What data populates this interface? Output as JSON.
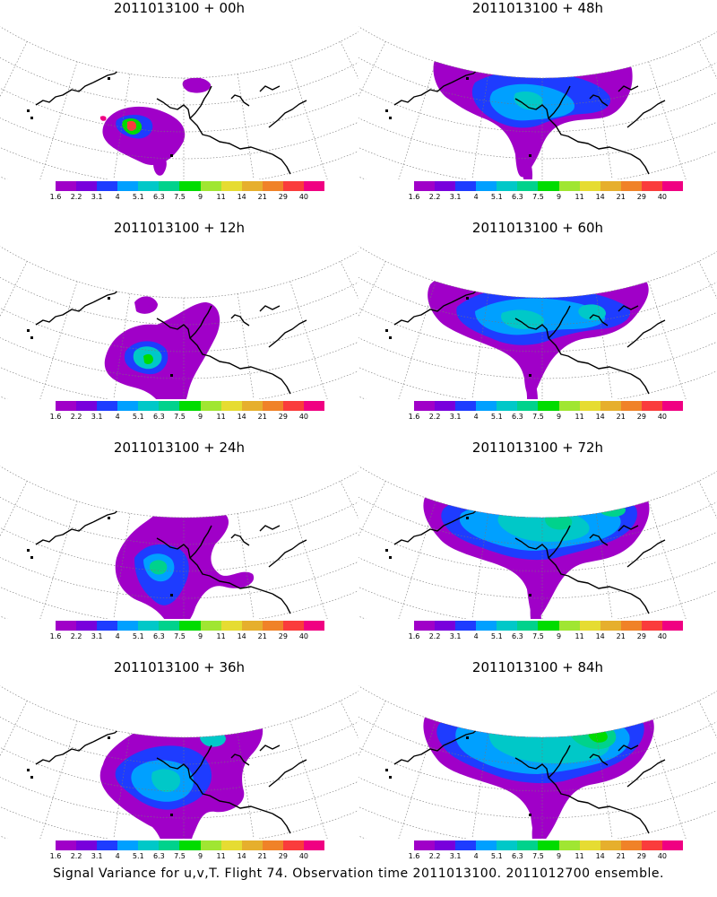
{
  "panels": [
    {
      "title": "2011013100 + 00h",
      "stage": 0
    },
    {
      "title": "2011013100 + 48h",
      "stage": 4
    },
    {
      "title": "2011013100 + 12h",
      "stage": 1
    },
    {
      "title": "2011013100 + 60h",
      "stage": 5
    },
    {
      "title": "2011013100 + 24h",
      "stage": 2
    },
    {
      "title": "2011013100 + 72h",
      "stage": 6
    },
    {
      "title": "2011013100 + 36h",
      "stage": 3
    },
    {
      "title": "2011013100 + 84h",
      "stage": 7
    }
  ],
  "colorbar": {
    "labels": [
      "1.6",
      "2.2",
      "3.1",
      "4",
      "5.1",
      "6.3",
      "7.5",
      "9",
      "11",
      "14",
      "21",
      "29",
      "40"
    ],
    "colors": [
      "#a000c8",
      "#7800dc",
      "#1e3cff",
      "#00a0ff",
      "#00c8c8",
      "#00d28c",
      "#00dc00",
      "#a0e632",
      "#e6dc32",
      "#e6af2d",
      "#f08228",
      "#fa3c3c",
      "#f00082"
    ]
  },
  "footer": "Signal Variance for u,v,T. Flight 74. Observation time 2011013100. 2011012700 ensemble."
}
